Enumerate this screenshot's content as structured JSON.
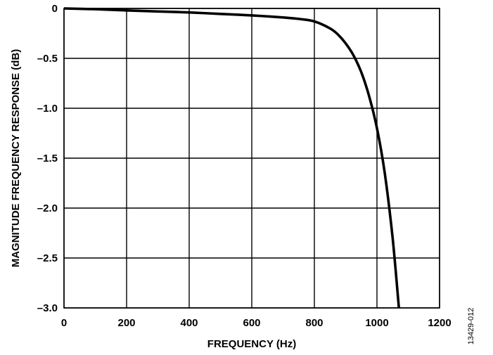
{
  "figure_id": "13429-012",
  "chart_data": {
    "type": "line",
    "title": "",
    "xlabel": "FREQUENCY (Hz)",
    "ylabel": "MAGNITUDE FREQUENCY RESPONSE (dB)",
    "xlim": [
      0,
      1200
    ],
    "ylim": [
      -3.0,
      0
    ],
    "xticks": [
      0,
      200,
      400,
      600,
      800,
      1000,
      1200
    ],
    "xtick_labels": [
      "0",
      "200",
      "400",
      "600",
      "800",
      "1000",
      "1200"
    ],
    "yticks": [
      0,
      -0.5,
      -1.0,
      -1.5,
      -2.0,
      -2.5,
      -3.0
    ],
    "ytick_labels": [
      "0",
      "–0.5",
      "–1.0",
      "–1.5",
      "–2.0",
      "–2.5",
      "–3.0"
    ],
    "grid": true,
    "series": [
      {
        "x": [
          0,
          100,
          200,
          300,
          400,
          500,
          600,
          700,
          750,
          800,
          850,
          875,
          900,
          925,
          950,
          975,
          1000,
          1025,
          1050,
          1070
        ],
        "y": [
          0,
          -0.008,
          -0.02,
          -0.03,
          -0.04,
          -0.055,
          -0.07,
          -0.09,
          -0.105,
          -0.13,
          -0.2,
          -0.26,
          -0.35,
          -0.47,
          -0.64,
          -0.88,
          -1.2,
          -1.65,
          -2.3,
          -3.0
        ]
      }
    ]
  }
}
